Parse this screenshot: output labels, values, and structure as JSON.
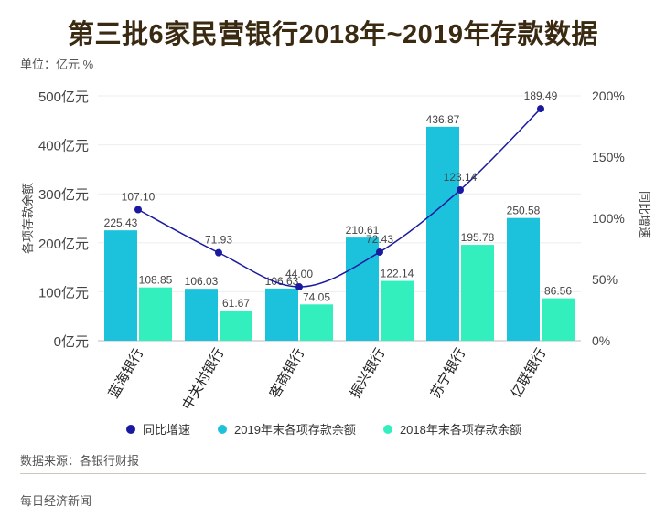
{
  "title": "第三批6家民营银行2018年~2019年存款数据",
  "unit_label": "单位：亿元 %",
  "source": "数据来源：各银行财报",
  "footer": "每日经济新闻",
  "colors": {
    "bar2019": "#1cc2db",
    "bar2018": "#33efbd",
    "line": "#1a1aa0",
    "title": "#3b2a12"
  },
  "legend": [
    {
      "label": "同比增速",
      "color": "#1a1aa0"
    },
    {
      "label": "2019年末各项存款余额",
      "color": "#1cc2db"
    },
    {
      "label": "2018年末各项存款余额",
      "color": "#33efbd"
    }
  ],
  "chart_data": {
    "type": "bar",
    "categories": [
      "蓝海银行",
      "中关村银行",
      "客商银行",
      "振兴银行",
      "苏宁银行",
      "亿联银行"
    ],
    "series": [
      {
        "name": "2019年末各项存款余额",
        "kind": "bar",
        "axis": "left",
        "values": [
          225.43,
          106.03,
          106.63,
          210.61,
          436.87,
          250.58
        ]
      },
      {
        "name": "2018年末各项存款余额",
        "kind": "bar",
        "axis": "left",
        "values": [
          108.85,
          61.67,
          74.05,
          122.14,
          195.78,
          86.56
        ]
      },
      {
        "name": "同比增速",
        "kind": "line",
        "axis": "right",
        "values": [
          107.1,
          71.93,
          44.0,
          72.43,
          123.14,
          189.49
        ]
      }
    ],
    "ylabel": "各项存款余额",
    "y2label": "同比增速",
    "ylim": [
      0,
      500
    ],
    "y2lim": [
      0,
      200
    ],
    "yticks": [
      "0亿元",
      "100亿元",
      "200亿元",
      "300亿元",
      "400亿元",
      "500亿元"
    ],
    "y2ticks": [
      "0%",
      "50%",
      "100%",
      "150%",
      "200%"
    ],
    "grid": true,
    "legend_position": "bottom"
  }
}
